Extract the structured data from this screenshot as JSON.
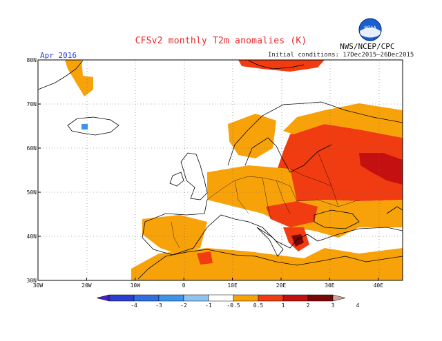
{
  "header": {
    "title": "CFSv2 monthly T2m anomalies (K)",
    "valid_month": "Apr 2016",
    "initial_conditions": "Initial conditions: 17Dec2015–26Dec2015",
    "agency": "NWS/NCEP/CPC",
    "logo_text": "NOAA"
  },
  "map": {
    "lon_range": [
      -30,
      45
    ],
    "lat_range": [
      30,
      80
    ],
    "lat_ticks": [
      "30N",
      "40N",
      "50N",
      "60N",
      "70N",
      "80N"
    ],
    "lat_values": [
      30,
      40,
      50,
      60,
      70,
      80
    ],
    "lon_ticks": [
      "30W",
      "20W",
      "10W",
      "0",
      "10E",
      "20E",
      "30E",
      "40E"
    ],
    "lon_values": [
      -30,
      -20,
      -10,
      0,
      10,
      20,
      30,
      40
    ]
  },
  "colorbar": {
    "labels": [
      "-4",
      "-3",
      "-2",
      "-1",
      "-0.5",
      "0.5",
      "1",
      "2",
      "3",
      "4"
    ],
    "colors": [
      "#4a1fc2",
      "#2a3fd0",
      "#2f6fe0",
      "#3c95e8",
      "#8fc4f2",
      "#ffffff",
      "#f8a20a",
      "#f03c10",
      "#c41010",
      "#7a0606",
      "#c8a89a"
    ]
  }
}
